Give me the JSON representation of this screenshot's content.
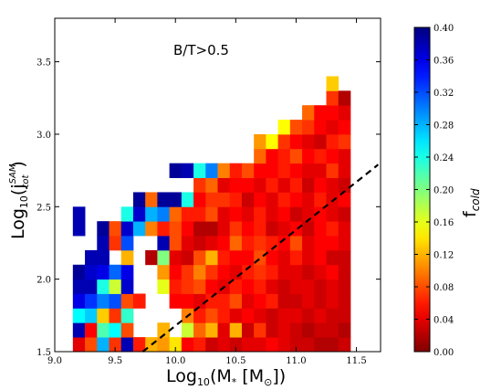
{
  "chart_data": {
    "type": "heatmap",
    "annotation": "B/T>0.5",
    "xlabel": {
      "main": "Log",
      "sub": "10",
      "rest": "(M",
      "rest_sub": "*",
      "tail": " [M",
      "tail_sub": "⊙",
      "end": "])"
    },
    "ylabel": {
      "main": "Log",
      "sub": "10",
      "rest": "(j",
      "rest_sup": "SAM",
      "rest_sub": "tot",
      "end": ")"
    },
    "colorbar_label": {
      "main": "f",
      "sub": "cold"
    },
    "xlim": [
      9.0,
      11.7
    ],
    "ylim": [
      1.5,
      3.8
    ],
    "xticks": [
      9.0,
      9.5,
      10.0,
      10.5,
      11.0,
      11.5
    ],
    "xtick_labels": [
      "9.0",
      "9.5",
      "10.0",
      "10.5",
      "11.0",
      "11.5"
    ],
    "yticks": [
      1.5,
      2.0,
      2.5,
      3.0,
      3.5
    ],
    "ytick_labels": [
      "1.5",
      "2.0",
      "2.5",
      "3.0",
      "3.5"
    ],
    "clim": [
      0.0,
      0.4
    ],
    "colorbar_ticks": [
      0.0,
      0.04,
      0.08,
      0.12,
      0.16,
      0.2,
      0.24,
      0.28,
      0.32,
      0.36,
      0.4
    ],
    "colorbar_tick_labels": [
      "0.00",
      "0.04",
      "0.08",
      "0.12",
      "0.16",
      "0.20",
      "0.24",
      "0.28",
      "0.32",
      "0.36",
      "0.40"
    ],
    "colormap": "jet_r",
    "bin_x_start": 9.15,
    "bin_y_start": 1.5,
    "bin_width": 0.1,
    "bin_height": 0.1,
    "rows_bottom_to_top": [
      [
        0.04,
        0.08,
        0.28,
        0.07,
        0.38,
        0.06,
        0.12,
        0.11,
        0.14,
        0.05,
        0.06,
        0.03,
        0.04,
        0.03,
        0.04,
        0.04,
        0.05,
        0.04,
        0.03,
        0.03,
        0.02,
        0.02,
        0.03
      ],
      [
        0.38,
        0.05,
        0.22,
        0.25,
        0.08,
        null,
        null,
        0.12,
        null,
        0.17,
        0.09,
        0.12,
        0.04,
        0.12,
        0.03,
        0.07,
        0.03,
        0.04,
        0.03,
        0.02,
        0.03,
        0.03,
        0.02
      ],
      [
        0.25,
        0.27,
        0.13,
        0.07,
        0.23,
        null,
        null,
        null,
        null,
        0.1,
        0.06,
        0.08,
        0.06,
        0.04,
        0.05,
        0.04,
        0.03,
        0.04,
        0.04,
        0.03,
        0.04,
        0.03,
        0.03
      ],
      [
        0.36,
        0.33,
        0.3,
        0.32,
        0.08,
        0.06,
        null,
        null,
        0.05,
        0.05,
        0.04,
        0.06,
        0.06,
        0.08,
        0.04,
        0.05,
        0.06,
        0.03,
        0.03,
        0.04,
        0.03,
        0.04,
        0.03
      ],
      [
        0.38,
        0.38,
        0.24,
        0.17,
        0.37,
        null,
        null,
        0.16,
        0.06,
        0.07,
        0.08,
        0.05,
        0.04,
        0.06,
        0.05,
        0.06,
        0.04,
        0.03,
        0.04,
        0.04,
        0.03,
        0.04,
        0.03
      ],
      [
        0.39,
        0.37,
        0.36,
        0.31,
        0.36,
        null,
        null,
        0.11,
        0.05,
        0.07,
        0.1,
        0.07,
        0.05,
        0.04,
        0.06,
        0.07,
        0.06,
        0.04,
        0.04,
        0.03,
        0.04,
        0.05,
        0.03
      ],
      [
        null,
        0.38,
        0.38,
        null,
        0.12,
        null,
        0.02,
        0.2,
        0.04,
        0.03,
        0.08,
        0.12,
        0.06,
        0.05,
        0.05,
        0.08,
        0.05,
        0.04,
        0.06,
        0.04,
        0.05,
        0.03,
        0.03
      ],
      [
        null,
        null,
        0.38,
        0.07,
        0.32,
        null,
        null,
        0.38,
        0.08,
        0.04,
        0.03,
        0.04,
        0.05,
        0.09,
        0.06,
        0.07,
        0.06,
        0.05,
        0.08,
        0.04,
        0.05,
        0.05,
        0.04
      ],
      [
        0.38,
        null,
        0.39,
        0.08,
        0.37,
        0.28,
        0.1,
        0.06,
        0.08,
        0.05,
        0.02,
        0.02,
        0.04,
        0.07,
        0.05,
        0.06,
        0.03,
        0.04,
        0.05,
        0.03,
        0.05,
        0.06,
        0.04
      ],
      [
        0.38,
        null,
        null,
        null,
        0.24,
        0.37,
        0.28,
        0.3,
        0.09,
        0.06,
        0.06,
        0.08,
        0.04,
        0.05,
        0.04,
        0.06,
        0.04,
        0.05,
        0.03,
        0.04,
        0.05,
        0.04,
        0.03
      ],
      [
        null,
        null,
        null,
        null,
        null,
        0.39,
        0.09,
        0.39,
        0.39,
        0.24,
        0.05,
        0.07,
        0.07,
        0.06,
        0.03,
        0.05,
        0.04,
        0.06,
        0.05,
        0.04,
        0.06,
        0.04,
        0.05
      ],
      [
        null,
        null,
        null,
        null,
        null,
        null,
        null,
        null,
        null,
        null,
        0.07,
        0.09,
        0.04,
        0.05,
        0.05,
        0.04,
        0.06,
        0.04,
        0.06,
        0.03,
        0.05,
        0.04,
        0.03
      ],
      [
        null,
        null,
        null,
        null,
        null,
        null,
        null,
        null,
        0.39,
        0.38,
        0.24,
        0.3,
        0.1,
        0.06,
        0.08,
        0.05,
        0.05,
        0.06,
        0.05,
        0.04,
        0.04,
        0.07,
        0.04
      ],
      [
        null,
        null,
        null,
        null,
        null,
        null,
        null,
        null,
        null,
        null,
        null,
        null,
        null,
        null,
        null,
        0.09,
        0.05,
        0.06,
        0.08,
        0.05,
        0.06,
        0.05,
        0.04
      ],
      [
        null,
        null,
        null,
        null,
        null,
        null,
        null,
        null,
        null,
        null,
        null,
        null,
        null,
        null,
        null,
        0.11,
        0.15,
        0.07,
        0.05,
        0.04,
        0.03,
        0.06,
        0.07
      ],
      [
        null,
        null,
        null,
        null,
        null,
        null,
        null,
        null,
        null,
        null,
        null,
        null,
        null,
        null,
        null,
        null,
        null,
        0.15,
        0.08,
        0.07,
        0.05,
        0.04,
        0.05
      ],
      [
        null,
        null,
        null,
        null,
        null,
        null,
        null,
        null,
        null,
        null,
        null,
        null,
        null,
        null,
        null,
        null,
        null,
        null,
        null,
        0.09,
        0.05,
        0.05,
        0.04
      ],
      [
        null,
        null,
        null,
        null,
        null,
        null,
        null,
        null,
        null,
        null,
        null,
        null,
        null,
        null,
        null,
        null,
        null,
        null,
        null,
        null,
        null,
        0.07,
        0.02
      ],
      [
        null,
        null,
        null,
        null,
        null,
        null,
        null,
        null,
        null,
        null,
        null,
        null,
        null,
        null,
        null,
        null,
        null,
        null,
        null,
        null,
        null,
        0.13,
        null
      ]
    ],
    "fit_line": {
      "style": "dashed",
      "color": "#000000",
      "x": [
        9.73,
        11.68
      ],
      "y": [
        1.5,
        2.79
      ]
    }
  }
}
